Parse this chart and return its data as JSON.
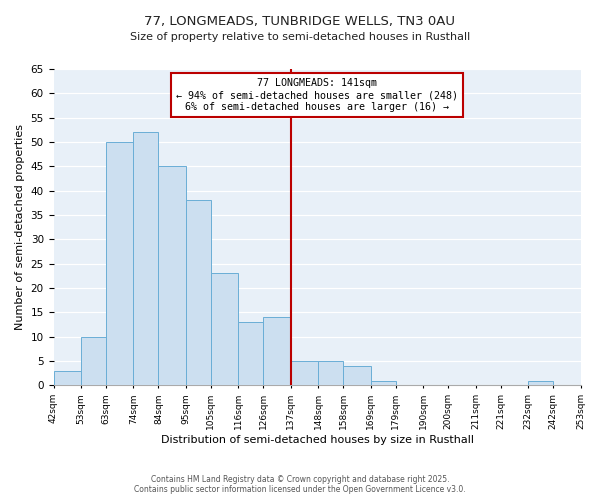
{
  "title": "77, LONGMEADS, TUNBRIDGE WELLS, TN3 0AU",
  "subtitle": "Size of property relative to semi-detached houses in Rusthall",
  "xlabel": "Distribution of semi-detached houses by size in Rusthall",
  "ylabel": "Number of semi-detached properties",
  "bin_edges": [
    42,
    53,
    63,
    74,
    84,
    95,
    105,
    116,
    126,
    137,
    148,
    158,
    169,
    179,
    190,
    200,
    211,
    221,
    232,
    242,
    253
  ],
  "bar_heights": [
    3,
    10,
    50,
    52,
    45,
    38,
    23,
    13,
    14,
    5,
    5,
    4,
    1,
    0,
    0,
    0,
    0,
    0,
    1,
    0
  ],
  "bar_facecolor": "#ccdff0",
  "bar_edgecolor": "#6aaed6",
  "vline_x": 137,
  "vline_color": "#bb0000",
  "annotation_title": "77 LONGMEADS: 141sqm",
  "annotation_line1": "← 94% of semi-detached houses are smaller (248)",
  "annotation_line2": "6% of semi-detached houses are larger (16) →",
  "annotation_box_edgecolor": "#bb0000",
  "ylim": [
    0,
    65
  ],
  "yticks": [
    0,
    5,
    10,
    15,
    20,
    25,
    30,
    35,
    40,
    45,
    50,
    55,
    60,
    65
  ],
  "footer1": "Contains HM Land Registry data © Crown copyright and database right 2025.",
  "footer2": "Contains public sector information licensed under the Open Government Licence v3.0.",
  "fig_bg_color": "#ffffff",
  "plot_bg_color": "#e8f0f8"
}
